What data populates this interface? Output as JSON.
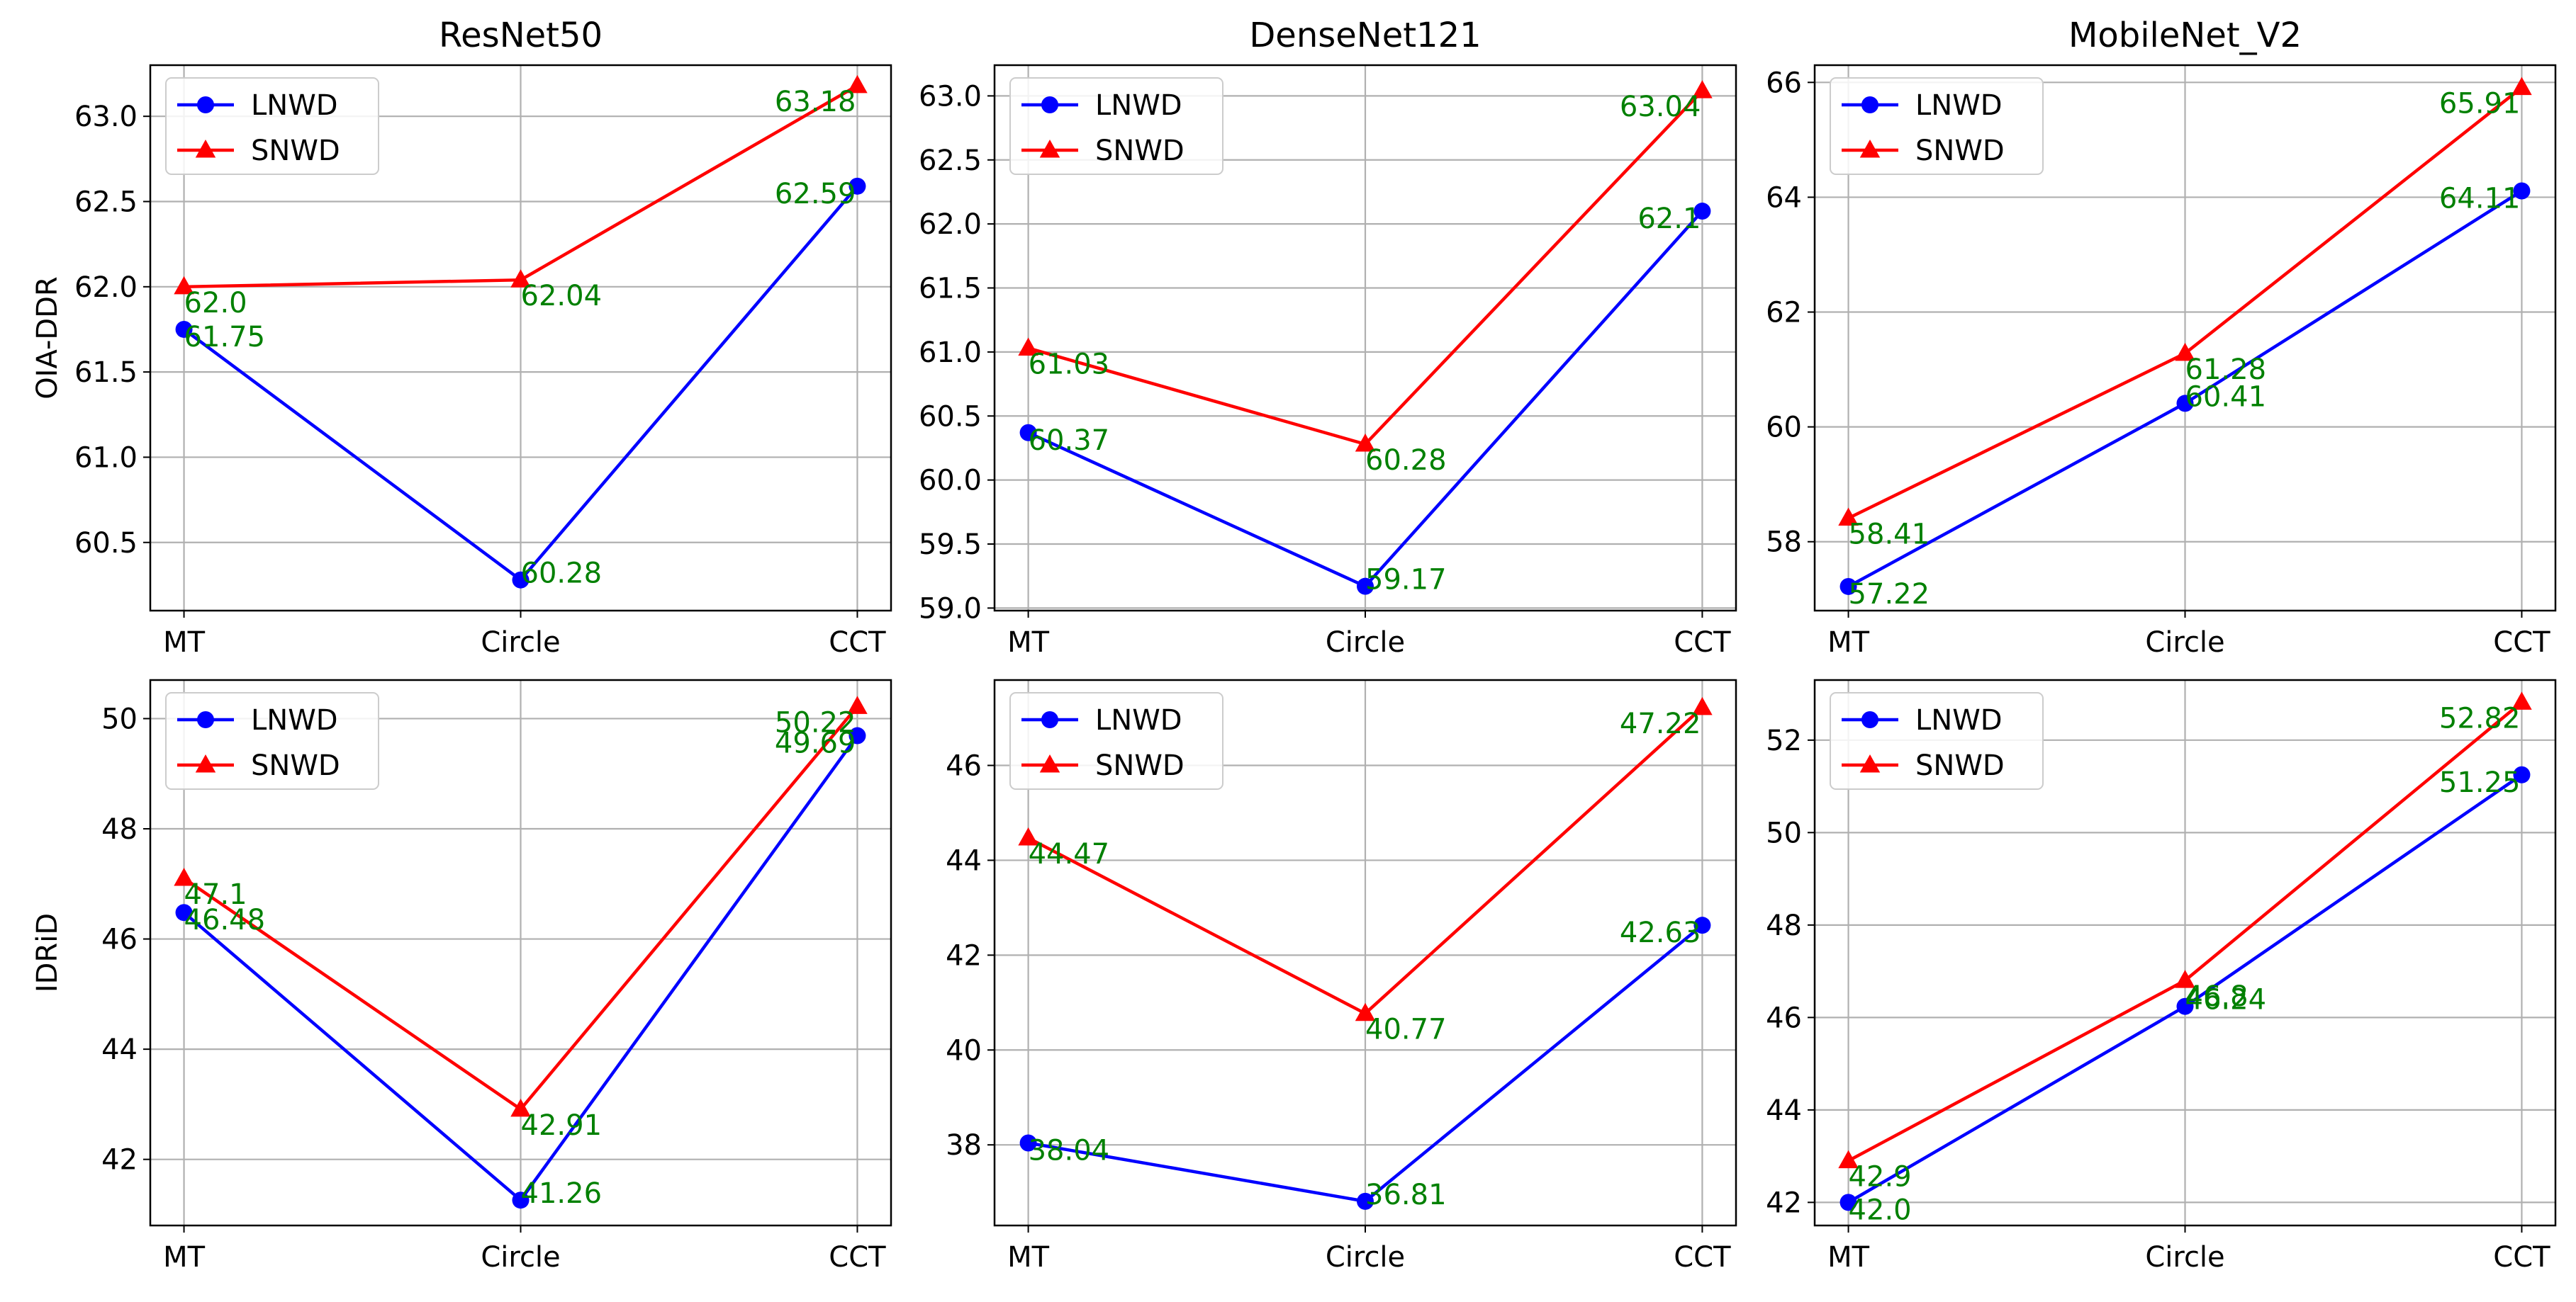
{
  "figure": {
    "colors": {
      "lnwd": "#0000ff",
      "snwd": "#ff0000",
      "annotation": "#008000",
      "grid": "#b0b0b0"
    },
    "row_labels": [
      "OIA-DDR",
      "IDRiD"
    ],
    "column_titles": [
      "ResNet50",
      "DenseNet121",
      "MobileNet_V2"
    ]
  },
  "chart_data": [
    {
      "type": "line",
      "title": "ResNet50",
      "ylabel": "OIA-DDR",
      "xlabel": "",
      "categories": [
        "MT",
        "Circle",
        "CCT"
      ],
      "ylim": [
        60.1,
        63.3
      ],
      "yticks": [
        60.5,
        61.0,
        61.5,
        62.0,
        62.5,
        63.0
      ],
      "ytick_labels": [
        "60.5",
        "61.0",
        "61.5",
        "62.0",
        "62.5",
        "63.0"
      ],
      "grid": true,
      "legend": "upper-left",
      "series": [
        {
          "name": "LNWD",
          "marker": "circle",
          "color": "#0000ff",
          "values": [
            61.75,
            60.28,
            62.59
          ],
          "labels": [
            "61.75",
            "60.28",
            "62.59"
          ]
        },
        {
          "name": "SNWD",
          "marker": "triangle",
          "color": "#ff0000",
          "values": [
            62.0,
            62.04,
            63.18
          ],
          "labels": [
            "62.0",
            "62.04",
            "63.18"
          ]
        }
      ]
    },
    {
      "type": "line",
      "title": "DenseNet121",
      "ylabel": "",
      "xlabel": "",
      "categories": [
        "MT",
        "Circle",
        "CCT"
      ],
      "ylim": [
        58.98,
        63.24
      ],
      "yticks": [
        59.0,
        59.5,
        60.0,
        60.5,
        61.0,
        61.5,
        62.0,
        62.5,
        63.0
      ],
      "ytick_labels": [
        "59.0",
        "59.5",
        "60.0",
        "60.5",
        "61.0",
        "61.5",
        "62.0",
        "62.5",
        "63.0"
      ],
      "grid": true,
      "legend": "upper-left",
      "series": [
        {
          "name": "LNWD",
          "marker": "circle",
          "color": "#0000ff",
          "values": [
            60.37,
            59.17,
            62.1
          ],
          "labels": [
            "60.37",
            "59.17",
            "62.1"
          ]
        },
        {
          "name": "SNWD",
          "marker": "triangle",
          "color": "#ff0000",
          "values": [
            61.03,
            60.28,
            63.04
          ],
          "labels": [
            "61.03",
            "60.28",
            "63.04"
          ]
        }
      ]
    },
    {
      "type": "line",
      "title": "MobileNet_V2",
      "ylabel": "",
      "xlabel": "",
      "categories": [
        "MT",
        "Circle",
        "CCT"
      ],
      "ylim": [
        56.8,
        66.3
      ],
      "yticks": [
        58,
        60,
        62,
        64,
        66
      ],
      "ytick_labels": [
        "58",
        "60",
        "62",
        "64",
        "66"
      ],
      "grid": true,
      "legend": "upper-left",
      "series": [
        {
          "name": "LNWD",
          "marker": "circle",
          "color": "#0000ff",
          "values": [
            57.22,
            60.41,
            64.11
          ],
          "labels": [
            "57.22",
            "60.41",
            "64.11"
          ]
        },
        {
          "name": "SNWD",
          "marker": "triangle",
          "color": "#ff0000",
          "values": [
            58.41,
            61.28,
            65.91
          ],
          "labels": [
            "58.41",
            "61.28",
            "65.91"
          ]
        }
      ]
    },
    {
      "type": "line",
      "title": "",
      "ylabel": "IDRiD",
      "xlabel": "",
      "categories": [
        "MT",
        "Circle",
        "CCT"
      ],
      "ylim": [
        40.8,
        50.7
      ],
      "yticks": [
        42,
        44,
        46,
        48,
        50
      ],
      "ytick_labels": [
        "42",
        "44",
        "46",
        "48",
        "50"
      ],
      "grid": true,
      "legend": "upper-left",
      "series": [
        {
          "name": "LNWD",
          "marker": "circle",
          "color": "#0000ff",
          "values": [
            46.48,
            41.26,
            49.69
          ],
          "labels": [
            "46.48",
            "41.26",
            "49.69"
          ]
        },
        {
          "name": "SNWD",
          "marker": "triangle",
          "color": "#ff0000",
          "values": [
            47.1,
            42.91,
            50.22
          ],
          "labels": [
            "47.1",
            "42.91",
            "50.22"
          ]
        }
      ]
    },
    {
      "type": "line",
      "title": "",
      "ylabel": "",
      "xlabel": "",
      "categories": [
        "MT",
        "Circle",
        "CCT"
      ],
      "ylim": [
        36.3,
        47.8
      ],
      "yticks": [
        38,
        40,
        42,
        44,
        46
      ],
      "ytick_labels": [
        "38",
        "40",
        "42",
        "44",
        "46"
      ],
      "grid": true,
      "legend": "upper-left",
      "series": [
        {
          "name": "LNWD",
          "marker": "circle",
          "color": "#0000ff",
          "values": [
            38.04,
            36.81,
            42.63
          ],
          "labels": [
            "38.04",
            "36.81",
            "42.63"
          ]
        },
        {
          "name": "SNWD",
          "marker": "triangle",
          "color": "#ff0000",
          "values": [
            44.47,
            40.77,
            47.22
          ],
          "labels": [
            "44.47",
            "40.77",
            "47.22"
          ]
        }
      ]
    },
    {
      "type": "line",
      "title": "",
      "ylabel": "",
      "xlabel": "",
      "categories": [
        "MT",
        "Circle",
        "CCT"
      ],
      "ylim": [
        41.5,
        53.3
      ],
      "yticks": [
        42,
        44,
        46,
        48,
        50,
        52
      ],
      "ytick_labels": [
        "42",
        "44",
        "46",
        "48",
        "50",
        "52"
      ],
      "grid": true,
      "legend": "upper-left",
      "series": [
        {
          "name": "LNWD",
          "marker": "circle",
          "color": "#0000ff",
          "values": [
            42.0,
            46.24,
            51.25
          ],
          "labels": [
            "42.0",
            "46.24",
            "51.25"
          ]
        },
        {
          "name": "SNWD",
          "marker": "triangle",
          "color": "#ff0000",
          "values": [
            42.9,
            46.8,
            52.82
          ],
          "labels": [
            "42.9",
            "46.8",
            "52.82"
          ]
        }
      ]
    }
  ]
}
